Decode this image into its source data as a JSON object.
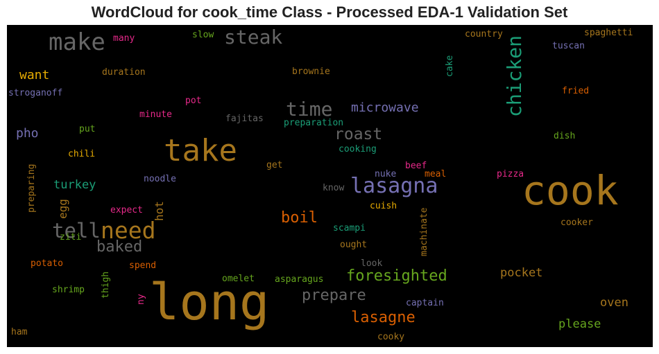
{
  "title": "WordCloud for cook_time Class - Processed EDA-1 Validation Set",
  "chart_data": {
    "type": "wordcloud",
    "background": "#000000",
    "palette": "Dark2",
    "words": [
      {
        "text": "long",
        "color": "#a6761d"
      },
      {
        "text": "cook",
        "color": "#a6761d"
      },
      {
        "text": "take",
        "color": "#a6761d"
      },
      {
        "text": "make",
        "color": "#666666"
      },
      {
        "text": "steak",
        "color": "#666666"
      },
      {
        "text": "chicken",
        "color": "#1b9e77",
        "vertical": true
      },
      {
        "text": "lasagna",
        "color": "#7570b3"
      },
      {
        "text": "need",
        "color": "#a6761d"
      },
      {
        "text": "tell",
        "color": "#666666"
      },
      {
        "text": "time",
        "color": "#666666"
      },
      {
        "text": "roast",
        "color": "#666666"
      },
      {
        "text": "microwave",
        "color": "#7570b3"
      },
      {
        "text": "foresighted",
        "color": "#66a61e"
      },
      {
        "text": "lasagne",
        "color": "#d95f02"
      },
      {
        "text": "prepare",
        "color": "#666666"
      },
      {
        "text": "boil",
        "color": "#d95f02"
      },
      {
        "text": "baked",
        "color": "#666666"
      },
      {
        "text": "pocket",
        "color": "#a6761d"
      },
      {
        "text": "please",
        "color": "#66a61e"
      },
      {
        "text": "oven",
        "color": "#a6761d"
      },
      {
        "text": "turkey",
        "color": "#1b9e77"
      },
      {
        "text": "want",
        "color": "#e6ab02"
      },
      {
        "text": "pho",
        "color": "#7570b3"
      },
      {
        "text": "hot",
        "color": "#a6761d",
        "vertical": true
      },
      {
        "text": "egg",
        "color": "#a6761d",
        "vertical": true
      },
      {
        "text": "many",
        "color": "#e7298a"
      },
      {
        "text": "slow",
        "color": "#66a61e"
      },
      {
        "text": "country",
        "color": "#a6761d"
      },
      {
        "text": "spaghetti",
        "color": "#a6761d"
      },
      {
        "text": "tuscan",
        "color": "#7570b3"
      },
      {
        "text": "duration",
        "color": "#a6761d"
      },
      {
        "text": "brownie",
        "color": "#a6761d"
      },
      {
        "text": "cake",
        "color": "#1b9e77",
        "vertical": true
      },
      {
        "text": "stroganoff",
        "color": "#7570b3"
      },
      {
        "text": "fried",
        "color": "#d95f02"
      },
      {
        "text": "pot",
        "color": "#e7298a"
      },
      {
        "text": "minute",
        "color": "#e7298a"
      },
      {
        "text": "fajitas",
        "color": "#666666"
      },
      {
        "text": "preparation",
        "color": "#1b9e77"
      },
      {
        "text": "put",
        "color": "#66a61e"
      },
      {
        "text": "dish",
        "color": "#66a61e"
      },
      {
        "text": "cooking",
        "color": "#1b9e77"
      },
      {
        "text": "chili",
        "color": "#e6ab02"
      },
      {
        "text": "get",
        "color": "#a6761d"
      },
      {
        "text": "beef",
        "color": "#e7298a"
      },
      {
        "text": "meal",
        "color": "#d95f02"
      },
      {
        "text": "pizza",
        "color": "#e7298a"
      },
      {
        "text": "preparing",
        "color": "#a6761d",
        "vertical": true
      },
      {
        "text": "noodle",
        "color": "#7570b3"
      },
      {
        "text": "nuke",
        "color": "#7570b3"
      },
      {
        "text": "know",
        "color": "#666666"
      },
      {
        "text": "cuish",
        "color": "#e6ab02"
      },
      {
        "text": "expect",
        "color": "#e7298a"
      },
      {
        "text": "cooker",
        "color": "#a6761d"
      },
      {
        "text": "scampi",
        "color": "#1b9e77"
      },
      {
        "text": "machinate",
        "color": "#a6761d",
        "vertical": true
      },
      {
        "text": "ziti",
        "color": "#66a61e"
      },
      {
        "text": "ought",
        "color": "#a6761d"
      },
      {
        "text": "potato",
        "color": "#d95f02"
      },
      {
        "text": "spend",
        "color": "#d95f02"
      },
      {
        "text": "look",
        "color": "#666666"
      },
      {
        "text": "thigh",
        "color": "#66a61e",
        "vertical": true
      },
      {
        "text": "omelet",
        "color": "#66a61e"
      },
      {
        "text": "asparagus",
        "color": "#66a61e"
      },
      {
        "text": "shrimp",
        "color": "#66a61e"
      },
      {
        "text": "ny",
        "color": "#e7298a",
        "vertical": true
      },
      {
        "text": "captain",
        "color": "#7570b3"
      },
      {
        "text": "ham",
        "color": "#a6761d"
      },
      {
        "text": "cooky",
        "color": "#a6761d"
      }
    ]
  }
}
